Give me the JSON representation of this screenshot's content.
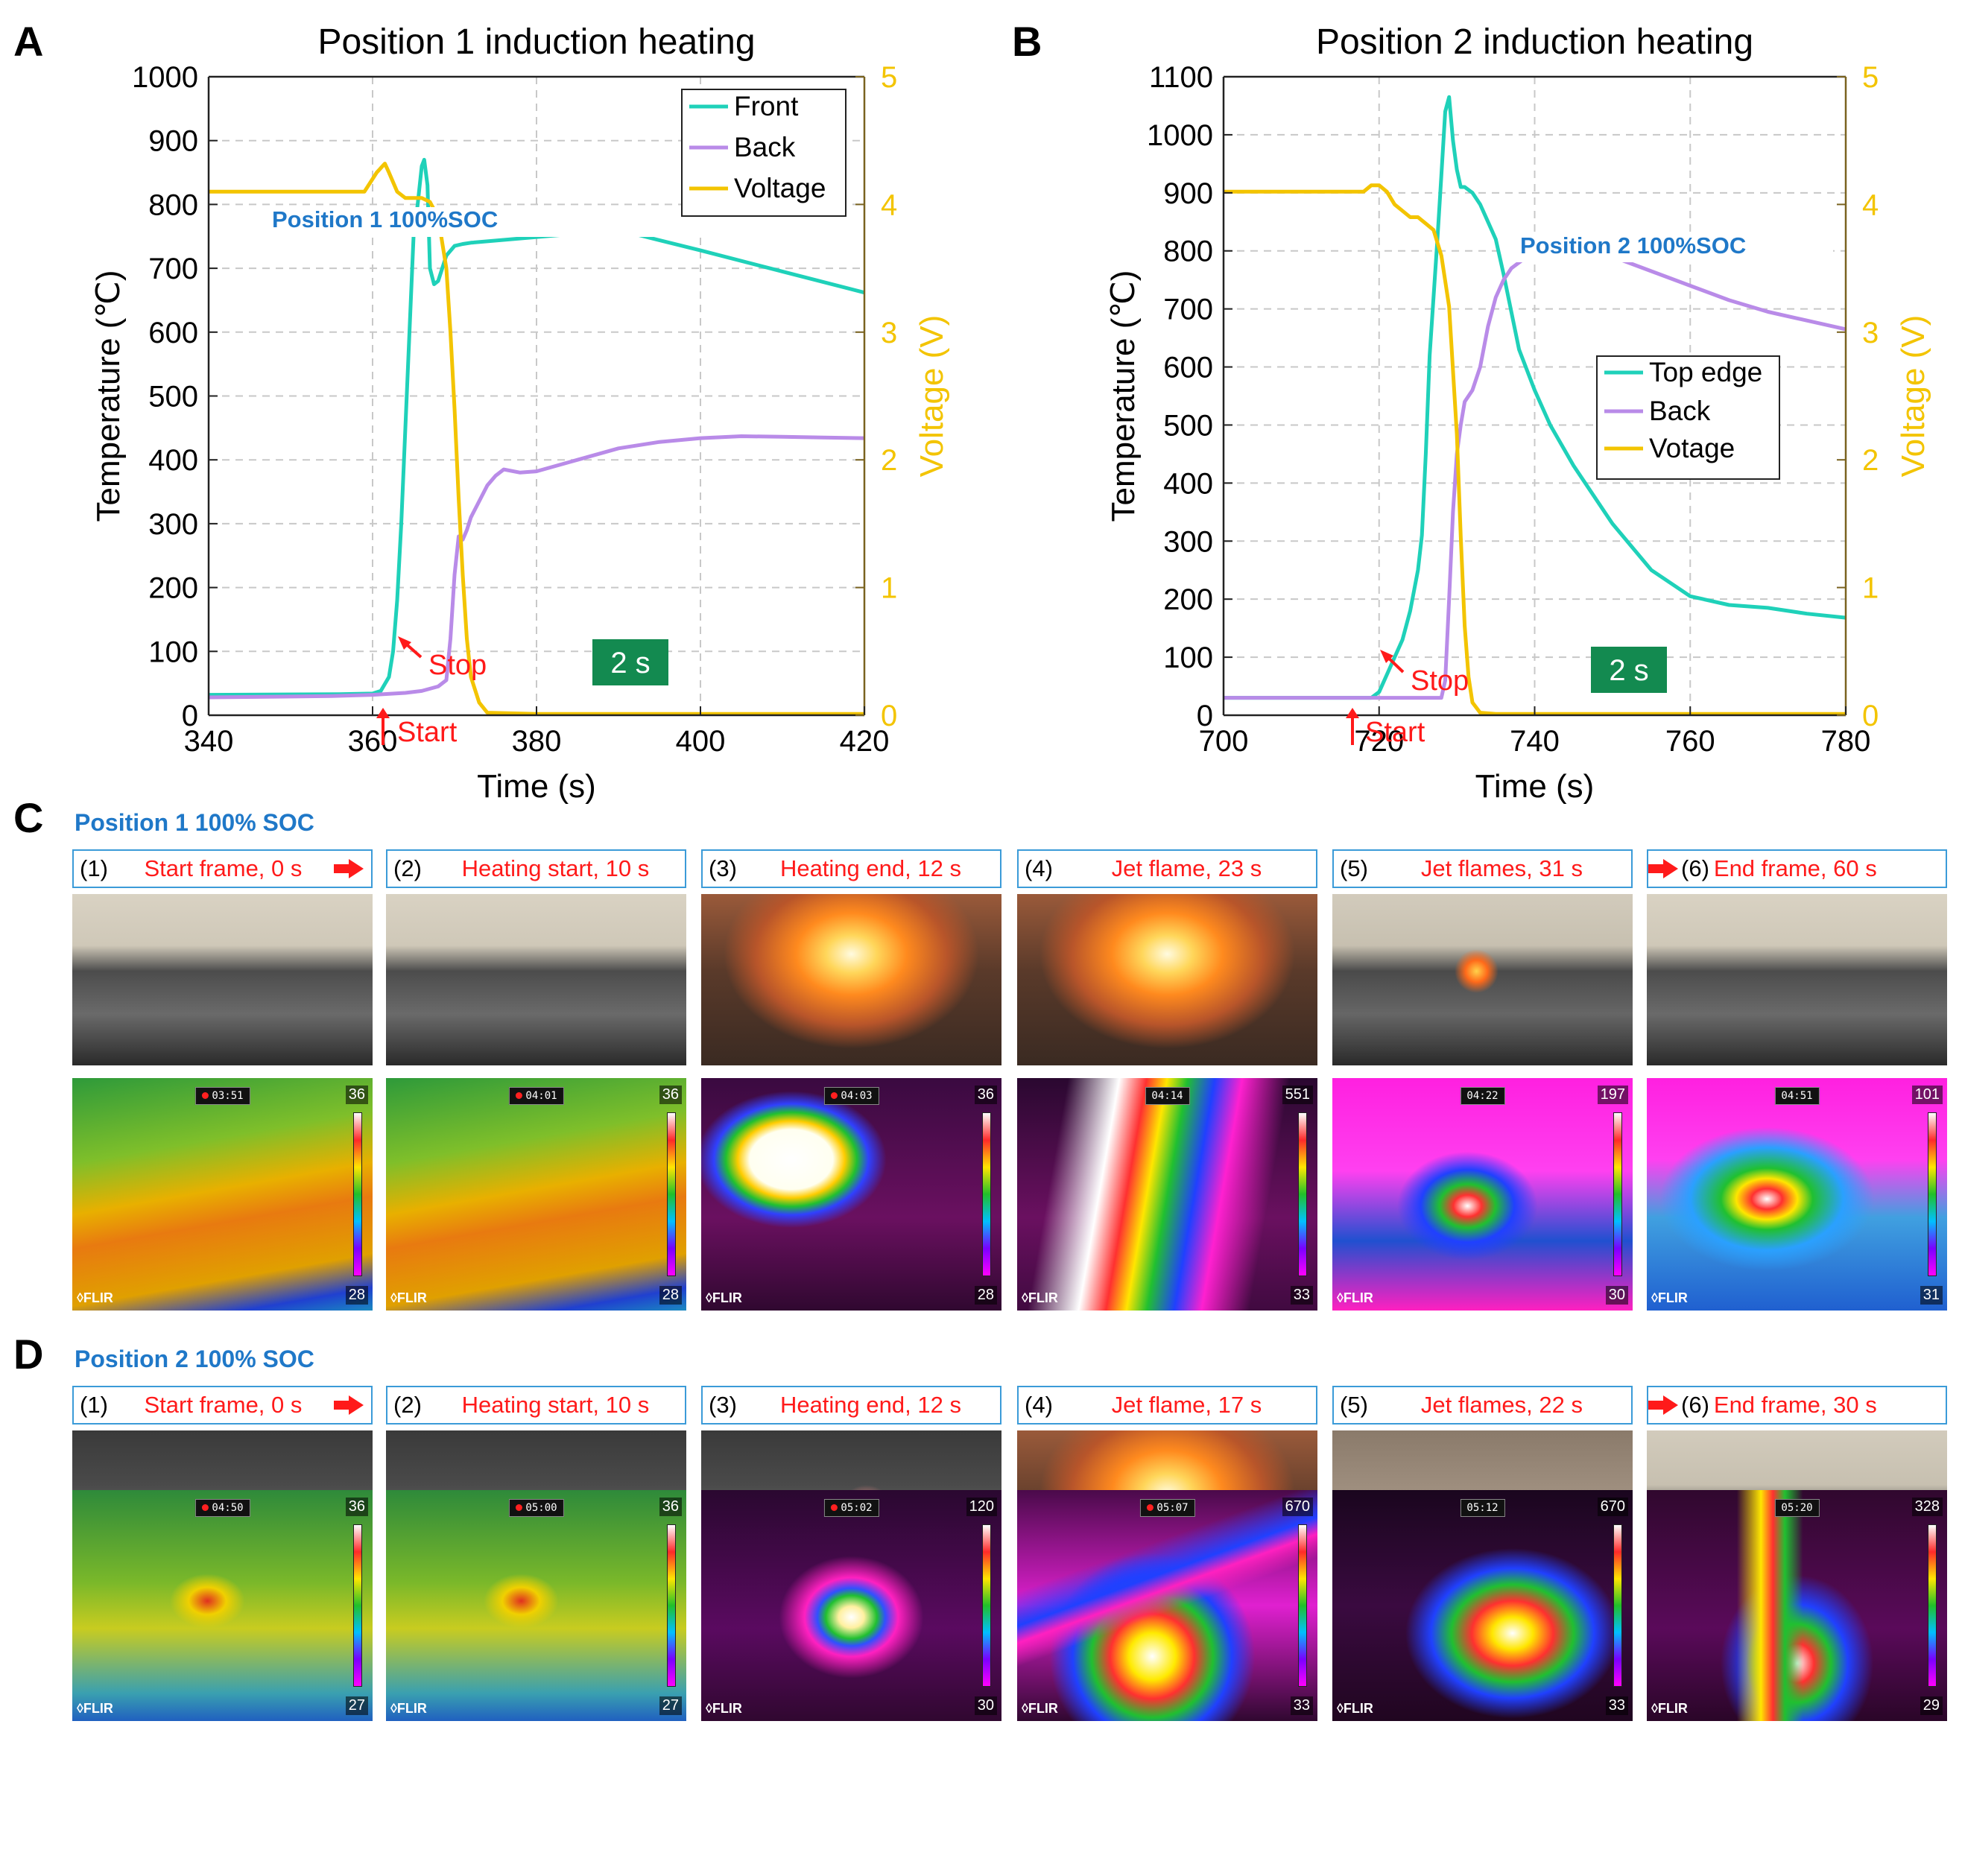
{
  "panel_letters": {
    "a": "A",
    "b": "B",
    "c": "C",
    "d": "D"
  },
  "chart_data": [
    {
      "type": "line",
      "title": "Position 1 induction heating",
      "xlabel": "Time (s)",
      "ylabel": "Temperature (℃)",
      "y2label": "Voltage (V)",
      "xlim": [
        340,
        420
      ],
      "ylim": [
        0,
        1000
      ],
      "y2lim": [
        0,
        5
      ],
      "xticks": [
        340,
        360,
        380,
        400,
        420
      ],
      "yticks": [
        0,
        100,
        200,
        300,
        400,
        500,
        600,
        700,
        800,
        900,
        1000
      ],
      "y2ticks": [
        0,
        1,
        2,
        3,
        4,
        5
      ],
      "grid": true,
      "legend": "top-right",
      "series": [
        {
          "name": "Front",
          "axis": "left",
          "color": "#1fd1b9",
          "x": [
            340,
            356,
            360,
            361,
            362,
            362.5,
            363,
            363.5,
            364,
            364.5,
            365,
            365.5,
            366,
            366.3,
            366.7,
            367,
            367.5,
            368,
            369,
            370,
            371,
            372,
            390,
            400,
            410,
            420
          ],
          "y": [
            32,
            33,
            34,
            38,
            60,
            100,
            180,
            300,
            450,
            600,
            750,
            800,
            860,
            870,
            830,
            700,
            675,
            680,
            720,
            735,
            738,
            740,
            760,
            728,
            695,
            662
          ]
        },
        {
          "name": "Back",
          "axis": "left",
          "color": "#b98be8",
          "x": [
            340,
            355,
            360,
            364,
            366,
            368,
            369,
            369.5,
            370,
            370.5,
            371,
            371.5,
            372,
            373,
            374,
            375,
            376,
            378,
            380,
            385,
            390,
            395,
            400,
            405,
            410,
            415,
            420
          ],
          "y": [
            28,
            30,
            32,
            35,
            38,
            45,
            55,
            120,
            220,
            280,
            275,
            290,
            310,
            335,
            360,
            375,
            385,
            380,
            382,
            400,
            418,
            428,
            434,
            437,
            436,
            435,
            434
          ]
        },
        {
          "name": "Voltage",
          "axis": "right",
          "color": "#f3c400",
          "x": [
            340,
            355,
            359,
            360.5,
            361.5,
            362,
            363,
            364,
            366,
            367,
            368,
            369,
            369.5,
            370,
            370.5,
            371,
            371.5,
            372,
            373,
            374,
            380,
            420
          ],
          "y": [
            4.1,
            4.1,
            4.1,
            4.25,
            4.32,
            4.25,
            4.1,
            4.05,
            4.05,
            4.02,
            3.9,
            3.5,
            3.0,
            2.4,
            1.7,
            1.1,
            0.6,
            0.3,
            0.1,
            0.02,
            0.01,
            0.01
          ]
        }
      ],
      "annotations": {
        "soc": "Position 1 100%SOC",
        "stop": "Stop",
        "start": "Start",
        "duration": "2 s"
      }
    },
    {
      "type": "line",
      "title": "Position 2 induction heating",
      "xlabel": "Time (s)",
      "ylabel": "Temperature (℃)",
      "y2label": "Voltage (V)",
      "xlim": [
        700,
        780
      ],
      "ylim": [
        0,
        1100
      ],
      "y2lim": [
        0,
        5
      ],
      "xticks": [
        700,
        720,
        740,
        760,
        780
      ],
      "yticks": [
        0,
        100,
        200,
        300,
        400,
        500,
        600,
        700,
        800,
        900,
        1000,
        1100
      ],
      "y2ticks": [
        0,
        1,
        2,
        3,
        4,
        5
      ],
      "grid": true,
      "legend": "center-right",
      "series": [
        {
          "name": "Top edge",
          "axis": "left",
          "color": "#1fd1b9",
          "x": [
            700,
            715,
            719,
            720,
            721,
            722,
            723,
            724,
            725,
            725.5,
            726,
            726.5,
            727,
            727.5,
            728,
            728.5,
            729,
            729.5,
            730,
            730.5,
            731,
            732,
            733,
            734,
            735,
            736,
            738,
            740,
            742,
            745,
            750,
            755,
            760,
            765,
            770,
            775,
            780
          ],
          "y": [
            30,
            30,
            30,
            40,
            70,
            100,
            130,
            180,
            250,
            310,
            450,
            620,
            720,
            820,
            930,
            1040,
            1065,
            990,
            940,
            910,
            910,
            900,
            880,
            850,
            820,
            760,
            630,
            560,
            500,
            430,
            330,
            250,
            205,
            190,
            185,
            175,
            168
          ]
        },
        {
          "name": "Back",
          "axis": "left",
          "color": "#b98be8",
          "x": [
            700,
            725,
            728,
            728.5,
            729,
            729.5,
            730,
            730.5,
            731,
            732,
            733,
            734,
            735,
            736,
            737,
            740,
            745,
            750,
            755,
            760,
            765,
            770,
            775,
            780
          ],
          "y": [
            30,
            30,
            30,
            60,
            200,
            350,
            450,
            500,
            540,
            560,
            600,
            670,
            720,
            750,
            770,
            800,
            806,
            790,
            765,
            740,
            715,
            695,
            680,
            665
          ]
        },
        {
          "name": "Votage",
          "axis": "right",
          "color": "#f3c400",
          "x": [
            700,
            718,
            719,
            720,
            721,
            722,
            723,
            724,
            725,
            726,
            727,
            728,
            729,
            730,
            730.5,
            731,
            731.5,
            732,
            733,
            735,
            780
          ],
          "y": [
            4.1,
            4.1,
            4.15,
            4.15,
            4.1,
            4.0,
            3.95,
            3.9,
            3.9,
            3.85,
            3.8,
            3.6,
            3.2,
            2.2,
            1.4,
            0.7,
            0.3,
            0.1,
            0.02,
            0.01,
            0.01
          ]
        }
      ],
      "annotations": {
        "soc": "Position 2 100%SOC",
        "stop": "Stop",
        "start": "Start",
        "duration": "2 s"
      }
    }
  ],
  "row_c": {
    "title": "Position 1 100% SOC",
    "frames": [
      {
        "num": "(1)",
        "label": "Start frame, 0 s",
        "arrow": "after",
        "ts": "03:51",
        "rec": true,
        "max": "36",
        "min": "28",
        "scene": "normal",
        "ir": "warm"
      },
      {
        "num": "(2)",
        "label": "Heating start, 10 s",
        "arrow": "",
        "ts": "04:01",
        "rec": true,
        "max": "36",
        "min": "28",
        "scene": "normal",
        "ir": "warm"
      },
      {
        "num": "(3)",
        "label": "Heating end, 12 s",
        "arrow": "",
        "ts": "04:03",
        "rec": true,
        "max": "36",
        "min": "28",
        "scene": "fire",
        "ir": "blob"
      },
      {
        "num": "(4)",
        "label": "Jet flame, 23 s",
        "arrow": "",
        "ts": "04:14",
        "rec": false,
        "max": "551",
        "min": "33",
        "scene": "fire",
        "ir": "jetup"
      },
      {
        "num": "(5)",
        "label": "Jet flames, 31 s",
        "arrow": "",
        "ts": "04:22",
        "rec": false,
        "max": "197",
        "min": "30",
        "scene": "small",
        "ir": "spread"
      },
      {
        "num": "(6)",
        "label": "End frame, 60 s",
        "arrow": "before",
        "ts": "04:51",
        "rec": false,
        "max": "101",
        "min": "31",
        "scene": "normal",
        "ir": "spread2"
      }
    ]
  },
  "row_d": {
    "title": "Position 2 100% SOC",
    "frames": [
      {
        "num": "(1)",
        "label": "Start frame, 0 s",
        "arrow": "after",
        "ts": "04:50",
        "rec": true,
        "max": "36",
        "min": "27",
        "scene": "dark",
        "ir": "green"
      },
      {
        "num": "(2)",
        "label": "Heating start, 10 s",
        "arrow": "",
        "ts": "05:00",
        "rec": true,
        "max": "36",
        "min": "27",
        "scene": "dark",
        "ir": "green"
      },
      {
        "num": "(3)",
        "label": "Heating end, 12 s",
        "arrow": "",
        "ts": "05:02",
        "rec": true,
        "max": "120",
        "min": "30",
        "scene": "darksmoke",
        "ir": "burst"
      },
      {
        "num": "(4)",
        "label": "Jet flame, 17 s",
        "arrow": "",
        "ts": "05:07",
        "rec": true,
        "max": "670",
        "min": "33",
        "scene": "fire",
        "ir": "jetside"
      },
      {
        "num": "(5)",
        "label": "Jet flames, 22 s",
        "arrow": "",
        "ts": "05:12",
        "rec": false,
        "max": "670",
        "min": "33",
        "scene": "smoke",
        "ir": "jetside2"
      },
      {
        "num": "(6)",
        "label": "End frame, 30 s",
        "arrow": "before",
        "ts": "05:20",
        "rec": false,
        "max": "328",
        "min": "29",
        "scene": "small",
        "ir": "plume"
      }
    ]
  },
  "flir_logo": "◊FLIR"
}
